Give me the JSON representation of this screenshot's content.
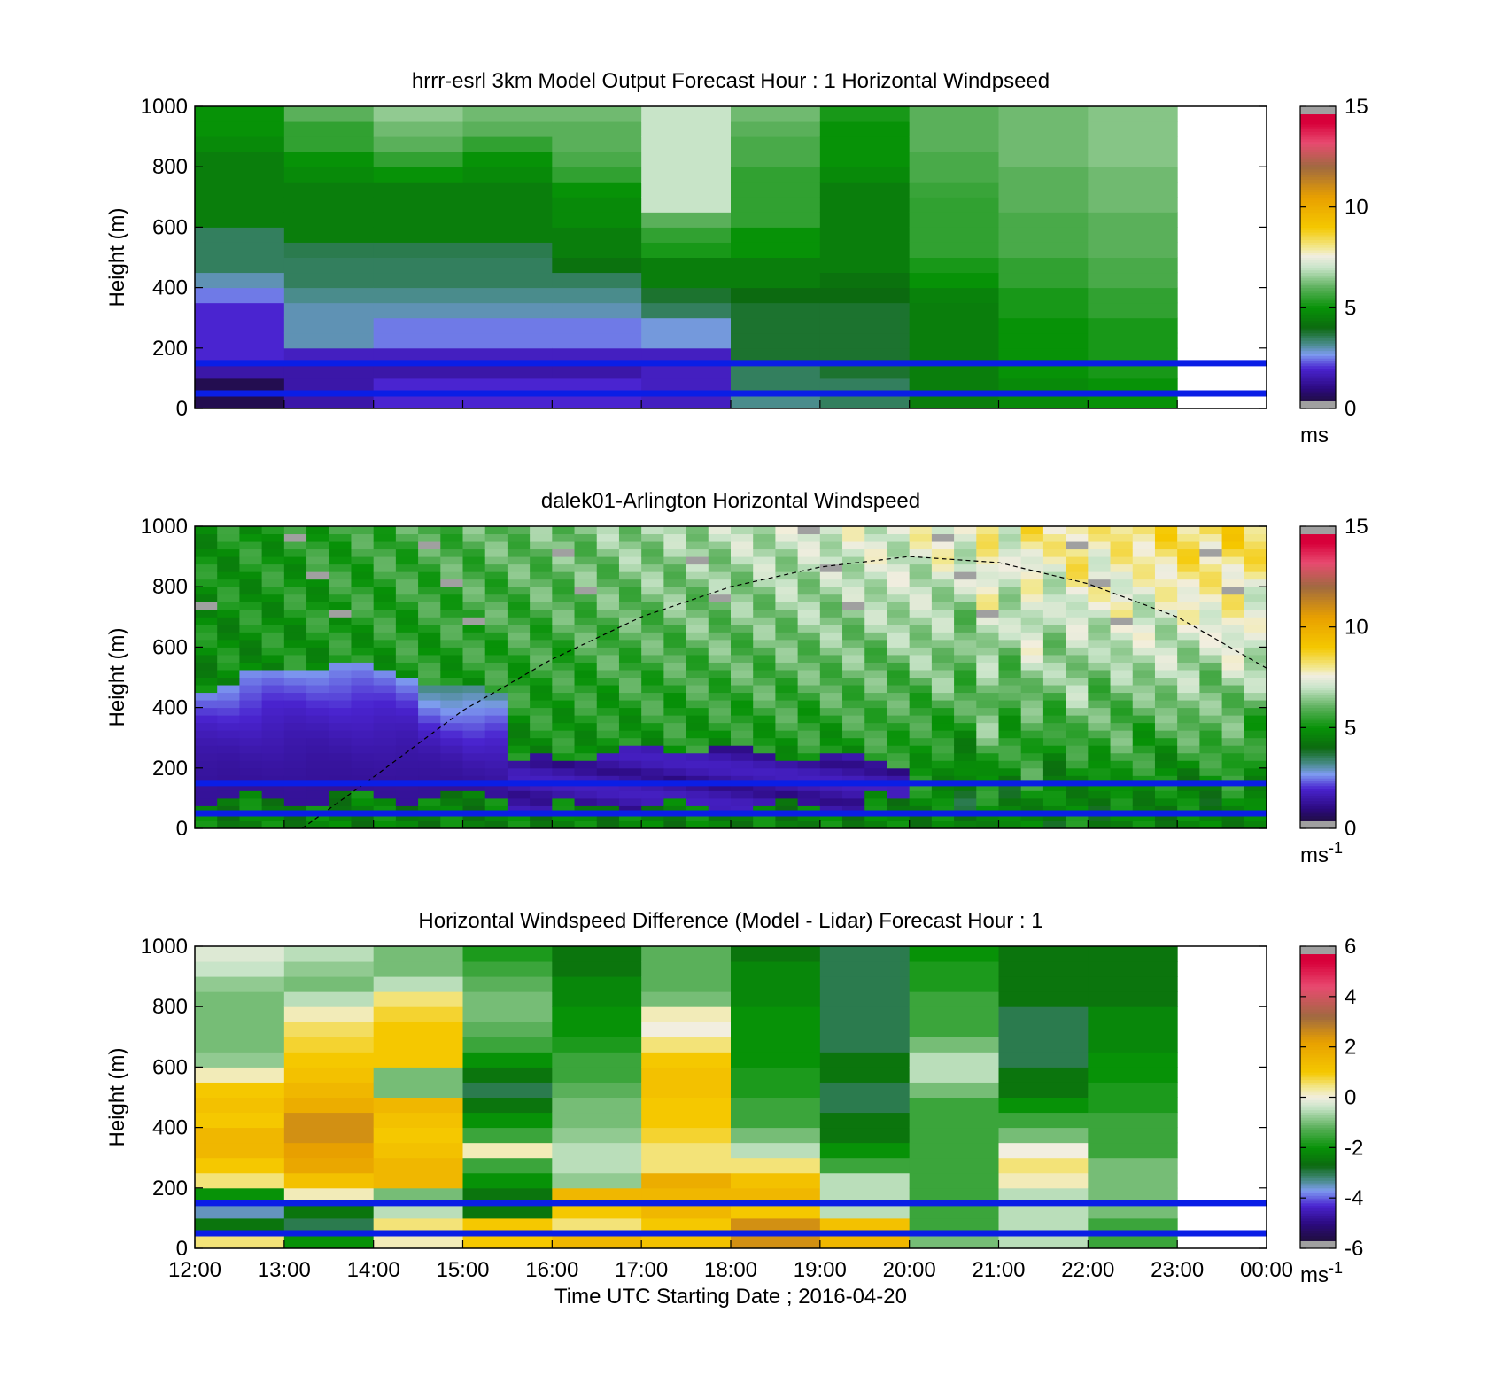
{
  "chart_data": [
    {
      "type": "heatmap",
      "title": "hrrr-esrl 3km Model Output   Forecast Hour : 1 Horizontal Windpseed",
      "ylabel": "Height (m)",
      "xlabel": "",
      "ylim": [
        0,
        1000
      ],
      "xlim": [
        0,
        12
      ],
      "yticks": [
        "0",
        "200",
        "400",
        "600",
        "800",
        "1000"
      ],
      "colorbar": {
        "min": 0,
        "max": 15,
        "ticks": [
          "0",
          "5",
          "10",
          "15"
        ],
        "unit": "ms",
        "unit_sup": ""
      },
      "x_times": [
        "12:00",
        "13:00",
        "14:00",
        "15:00",
        "16:00",
        "17:00",
        "18:00",
        "19:00",
        "20:00",
        "21:00",
        "22:00"
      ],
      "heights": [
        25,
        75,
        125,
        175,
        225,
        275,
        325,
        375,
        425,
        475,
        525,
        575,
        625,
        675,
        725,
        775,
        825,
        875,
        925,
        975
      ],
      "values": [
        [
          0.5,
          0.5,
          1.5,
          2.0,
          2.0,
          2.0,
          2.0,
          2.5,
          3.0,
          3.5,
          3.5,
          3.5,
          4.5,
          4.5,
          4.5,
          4.5,
          4.5,
          4.8,
          5.0,
          5.0
        ],
        [
          1.5,
          1.5,
          1.5,
          1.8,
          3.0,
          3.0,
          3.0,
          3.2,
          3.5,
          3.5,
          3.6,
          4.5,
          4.5,
          4.5,
          4.5,
          4.8,
          5.0,
          5.5,
          5.5,
          6.0
        ],
        [
          2.0,
          2.0,
          1.5,
          1.8,
          2.5,
          2.5,
          3.0,
          3.2,
          3.5,
          3.5,
          3.6,
          4.5,
          4.5,
          4.5,
          4.5,
          5.0,
          5.5,
          6.0,
          6.2,
          6.5
        ],
        [
          2.0,
          2.0,
          1.5,
          1.8,
          2.5,
          2.5,
          3.0,
          3.2,
          3.5,
          3.5,
          3.6,
          4.5,
          4.5,
          4.5,
          4.5,
          4.8,
          5.0,
          5.5,
          6.0,
          6.2
        ],
        [
          2.0,
          2.0,
          1.5,
          1.8,
          2.5,
          2.5,
          3.0,
          3.2,
          3.5,
          4.2,
          4.5,
          4.5,
          4.8,
          4.8,
          5.0,
          5.5,
          5.8,
          6.0,
          6.0,
          6.2
        ],
        [
          1.8,
          1.8,
          1.8,
          1.8,
          2.8,
          2.8,
          3.5,
          3.8,
          4.5,
          4.5,
          5.2,
          5.5,
          6.0,
          7.0,
          7.0,
          7.0,
          7.0,
          7.0,
          7.0,
          7.0
        ],
        [
          3.2,
          3.5,
          3.5,
          3.8,
          3.8,
          3.8,
          3.8,
          4.0,
          4.5,
          4.5,
          5.0,
          5.0,
          5.5,
          5.5,
          5.5,
          5.5,
          5.8,
          5.8,
          6.0,
          6.2
        ],
        [
          3.5,
          3.5,
          3.8,
          3.8,
          3.8,
          3.8,
          3.8,
          4.0,
          4.2,
          4.5,
          4.5,
          4.5,
          4.5,
          4.5,
          4.5,
          4.8,
          5.0,
          5.0,
          5.0,
          5.2
        ],
        [
          4.5,
          4.5,
          4.5,
          4.5,
          4.5,
          4.5,
          4.5,
          4.6,
          5.0,
          5.2,
          5.5,
          5.5,
          5.5,
          5.5,
          5.6,
          5.8,
          5.8,
          6.0,
          6.0,
          6.0
        ],
        [
          4.8,
          4.8,
          5.0,
          5.0,
          5.0,
          5.0,
          5.2,
          5.2,
          5.5,
          5.5,
          5.8,
          5.8,
          5.8,
          6.0,
          6.0,
          6.0,
          6.2,
          6.2,
          6.2,
          6.2
        ],
        [
          5.0,
          5.0,
          5.2,
          5.2,
          5.2,
          5.2,
          5.5,
          5.5,
          5.8,
          5.8,
          6.0,
          6.0,
          6.0,
          6.2,
          6.2,
          6.2,
          6.4,
          6.4,
          6.4,
          6.4
        ]
      ]
    },
    {
      "type": "heatmap",
      "title": "dalek01-Arlington  Horizontal Windspeed",
      "ylabel": "Height (m)",
      "xlabel": "",
      "ylim": [
        0,
        1000
      ],
      "xlim": [
        0,
        12
      ],
      "yticks": [
        "0",
        "200",
        "400",
        "600",
        "800",
        "1000"
      ],
      "colorbar": {
        "min": 0,
        "max": 15,
        "ticks": [
          "0",
          "5",
          "10",
          "15"
        ],
        "unit": "ms",
        "unit_sup": "-1"
      },
      "overlay_curve": {
        "style": "dashed",
        "x": [
          1.2,
          2,
          3,
          4,
          5,
          6,
          7,
          8,
          9,
          10,
          11,
          12
        ],
        "y": [
          0,
          170,
          390,
          560,
          700,
          800,
          865,
          900,
          880,
          810,
          700,
          530
        ]
      }
    },
    {
      "type": "heatmap",
      "title": "Horizontal Windspeed Difference (Model - Lidar) Forecast Hour : 1",
      "ylabel": "Height (m)",
      "xlabel": "Time UTC  Starting Date ; 2016-04-20",
      "ylim": [
        0,
        1000
      ],
      "xlim": [
        0,
        12
      ],
      "yticks": [
        "0",
        "200",
        "400",
        "600",
        "800",
        "1000"
      ],
      "xticks": [
        "12:00",
        "13:00",
        "14:00",
        "15:00",
        "16:00",
        "17:00",
        "18:00",
        "19:00",
        "20:00",
        "21:00",
        "22:00",
        "23:00",
        "00:00"
      ],
      "colorbar": {
        "min": -6,
        "max": 6,
        "ticks": [
          "-6",
          "-4",
          "-2",
          "0",
          "2",
          "4",
          "6"
        ],
        "unit": "ms",
        "unit_sup": "-1"
      },
      "x_times": [
        "12:00",
        "13:00",
        "14:00",
        "15:00",
        "16:00",
        "17:00",
        "18:00",
        "19:00",
        "20:00",
        "21:00",
        "22:00"
      ],
      "heights": [
        25,
        75,
        125,
        175,
        225,
        275,
        325,
        375,
        425,
        475,
        525,
        575,
        625,
        675,
        725,
        775,
        825,
        875,
        925,
        975
      ],
      "values": [
        [
          0.5,
          -2.5,
          -3.5,
          -2.0,
          0.5,
          1.0,
          1.5,
          1.5,
          1.0,
          1.2,
          1.0,
          0.2,
          -0.8,
          -1.0,
          -1.0,
          -1.0,
          -1.0,
          -0.8,
          -0.4,
          -0.2
        ],
        [
          -2.0,
          -3.0,
          -2.5,
          0.2,
          1.2,
          2.0,
          2.2,
          2.5,
          2.5,
          1.8,
          1.5,
          1.2,
          1.0,
          0.8,
          0.6,
          0.2,
          -0.5,
          -1.0,
          -0.8,
          -0.5
        ],
        [
          0.2,
          0.5,
          -0.5,
          -1.0,
          1.5,
          1.5,
          1.2,
          1.0,
          1.2,
          1.5,
          -1.0,
          -1.0,
          1.0,
          1.0,
          1.0,
          0.8,
          0.5,
          -0.5,
          -1.0,
          -1.0
        ],
        [
          1.0,
          1.0,
          -2.5,
          -2.5,
          -2.0,
          -1.5,
          0.2,
          -1.5,
          -2.0,
          -2.5,
          -3.0,
          -2.5,
          -2.0,
          -1.5,
          -1.2,
          -1.0,
          -1.0,
          -1.2,
          -1.5,
          -1.8
        ],
        [
          1.5,
          0.5,
          1.0,
          1.5,
          -0.8,
          -0.5,
          -0.5,
          -0.8,
          -1.0,
          -1.0,
          -1.2,
          -1.5,
          -1.5,
          -1.8,
          -2.0,
          -2.0,
          -2.2,
          -2.2,
          -2.5,
          -2.5
        ],
        [
          1.2,
          1.0,
          1.5,
          1.5,
          1.8,
          0.5,
          0.5,
          0.8,
          1.0,
          1.0,
          1.2,
          1.2,
          1.0,
          0.5,
          0.0,
          0.2,
          -1.0,
          -1.2,
          -1.2,
          -1.2
        ],
        [
          2.5,
          2.5,
          1.0,
          1.5,
          1.2,
          0.5,
          -0.5,
          -1.0,
          -1.5,
          -1.5,
          -1.8,
          -1.8,
          -2.0,
          -2.0,
          -2.0,
          -2.0,
          -2.2,
          -2.2,
          -2.2,
          -2.5
        ],
        [
          1.5,
          1.2,
          -0.5,
          -0.5,
          -0.5,
          -1.5,
          -2.0,
          -2.5,
          -2.5,
          -3.0,
          -3.0,
          -2.5,
          -2.5,
          -3.0,
          -3.0,
          -3.0,
          -3.0,
          -3.0,
          -3.0,
          -3.0
        ],
        [
          -1.0,
          -1.5,
          -1.5,
          -1.5,
          -1.5,
          -1.5,
          -1.5,
          -1.5,
          -1.5,
          -1.5,
          -1.0,
          -0.5,
          -0.5,
          -1.0,
          -1.5,
          -1.5,
          -1.5,
          -1.8,
          -1.8,
          -2.0
        ],
        [
          -0.5,
          -0.5,
          -0.5,
          -0.5,
          0.2,
          0.5,
          0.0,
          -1.0,
          -1.5,
          -2.0,
          -2.5,
          -2.5,
          -3.0,
          -3.0,
          -3.0,
          -3.0,
          -2.5,
          -2.5,
          -2.5,
          -2.5
        ],
        [
          -1.5,
          -1.5,
          -1.0,
          -1.0,
          -1.0,
          -1.0,
          -1.5,
          -1.5,
          -1.5,
          -1.8,
          -1.8,
          -2.0,
          -2.0,
          -2.2,
          -2.2,
          -2.2,
          -2.5,
          -2.5,
          -2.5,
          -2.5
        ]
      ]
    }
  ],
  "reference_lines": [
    {
      "height": 150,
      "color": "#0a1ee6"
    },
    {
      "height": 50,
      "color": "#0a1ee6"
    }
  ],
  "colors": {
    "missing": "#a0a0a0",
    "speed_map": [
      [
        0.0,
        "#1a1020"
      ],
      [
        1.0,
        "#2c0a80"
      ],
      [
        2.0,
        "#4a24d0"
      ],
      [
        2.7,
        "#7e9cf0"
      ],
      [
        3.2,
        "#4a8c8c"
      ],
      [
        4.0,
        "#0c6a10"
      ],
      [
        5.0,
        "#079207"
      ],
      [
        6.0,
        "#5ab05a"
      ],
      [
        7.0,
        "#c8e4c8"
      ],
      [
        7.6,
        "#f2eee0"
      ],
      [
        8.0,
        "#f2e890"
      ],
      [
        9.0,
        "#f5c800"
      ],
      [
        10.5,
        "#e8a000"
      ],
      [
        12.0,
        "#a06a40"
      ],
      [
        13.2,
        "#e84a70"
      ],
      [
        14.2,
        "#d8003a"
      ],
      [
        15.0,
        "#d8003a"
      ]
    ],
    "diff_map": [
      [
        -6.0,
        "#1a1020"
      ],
      [
        -5.0,
        "#2c0a80"
      ],
      [
        -4.3,
        "#4a24d0"
      ],
      [
        -3.7,
        "#7e9cf0"
      ],
      [
        -3.3,
        "#4a8c8c"
      ],
      [
        -2.7,
        "#0c6a10"
      ],
      [
        -2.0,
        "#079207"
      ],
      [
        -1.2,
        "#5ab05a"
      ],
      [
        -0.4,
        "#c8e4c8"
      ],
      [
        0.0,
        "#f2eee0"
      ],
      [
        0.4,
        "#f2e890"
      ],
      [
        1.0,
        "#f5c800"
      ],
      [
        2.2,
        "#e8a000"
      ],
      [
        3.2,
        "#a06a40"
      ],
      [
        4.4,
        "#e84a70"
      ],
      [
        5.4,
        "#d8003a"
      ],
      [
        6.0,
        "#d8003a"
      ]
    ]
  }
}
